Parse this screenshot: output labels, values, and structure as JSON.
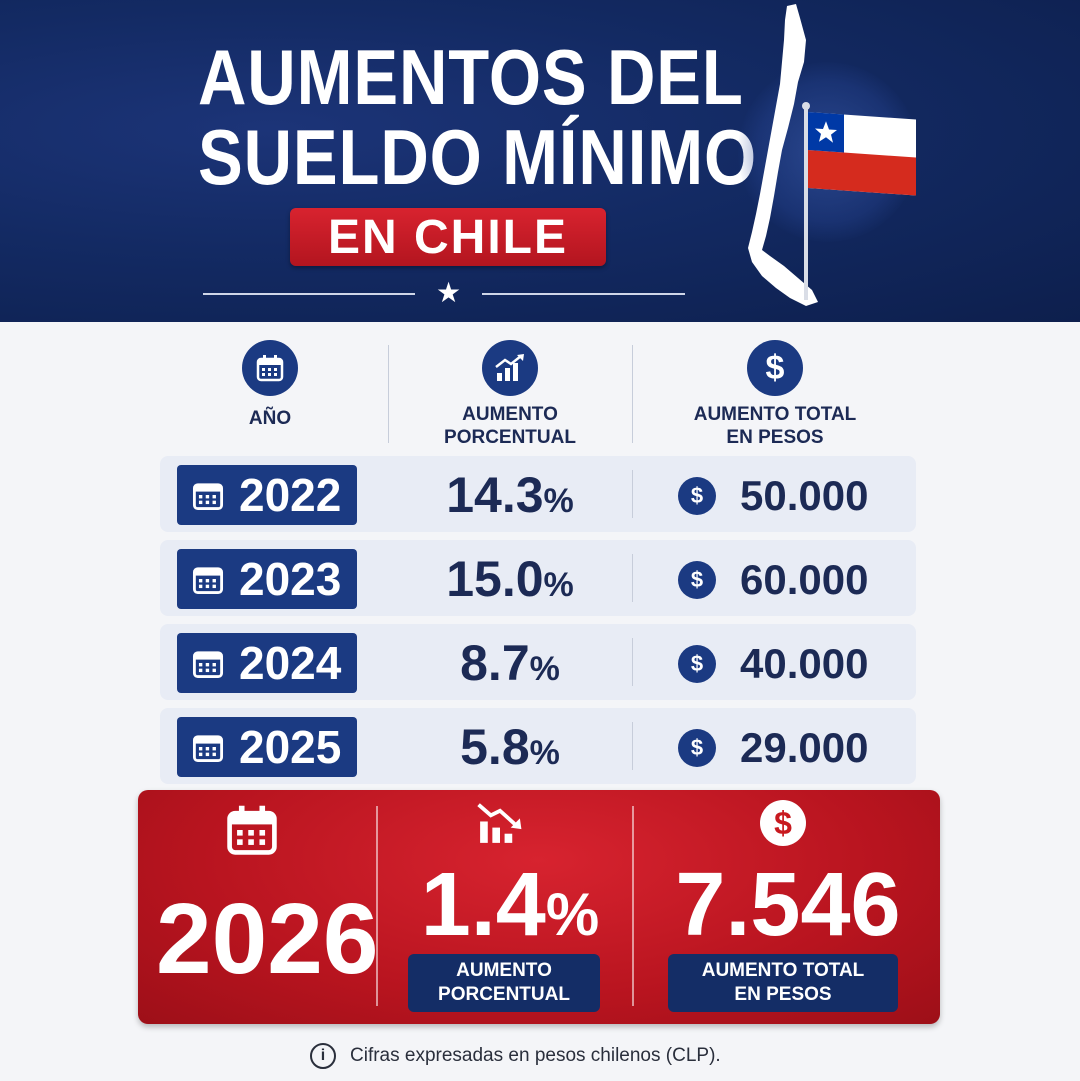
{
  "header": {
    "title_line1": "AUMENTOS DEL",
    "title_line2": "SUELDO MÍNIMO",
    "badge": "EN CHILE",
    "star": "★"
  },
  "columns": {
    "year": "AÑO",
    "percent": "AUMENTO\nPORCENTUAL",
    "total": "AUMENTO TOTAL\nEN PESOS"
  },
  "rows": [
    {
      "year": "2022",
      "percent": "14.3",
      "percent_sign": "%",
      "currency_icon": "$",
      "amount": "50.000"
    },
    {
      "year": "2023",
      "percent": "15.0",
      "percent_sign": "%",
      "currency_icon": "$",
      "amount": "60.000"
    },
    {
      "year": "2024",
      "percent": "8.7",
      "percent_sign": "%",
      "currency_icon": "$",
      "amount": "40.000"
    },
    {
      "year": "2025",
      "percent": "5.8",
      "percent_sign": "%",
      "currency_icon": "$",
      "amount": "29.000"
    }
  ],
  "highlight": {
    "year": "2026",
    "percent": "1.4",
    "percent_sign": "%",
    "amount": "7.546",
    "currency_icon": "$",
    "percent_label": "AUMENTO\nPORCENTUAL",
    "amount_label": "AUMENTO TOTAL\nEN PESOS"
  },
  "footer": {
    "info_icon": "i",
    "note": "Cifras expresadas en pesos chilenos (CLP)."
  },
  "colors": {
    "navy": "#132a63",
    "row_blue": "#1b3a82",
    "red": "#c8191f",
    "row_bg": "#e8ecf5"
  },
  "icons": [
    "calendar-icon",
    "growth-chart-icon",
    "dollar-icon",
    "decline-chart-icon",
    "info-icon",
    "chile-map-icon",
    "chile-flag-icon"
  ]
}
